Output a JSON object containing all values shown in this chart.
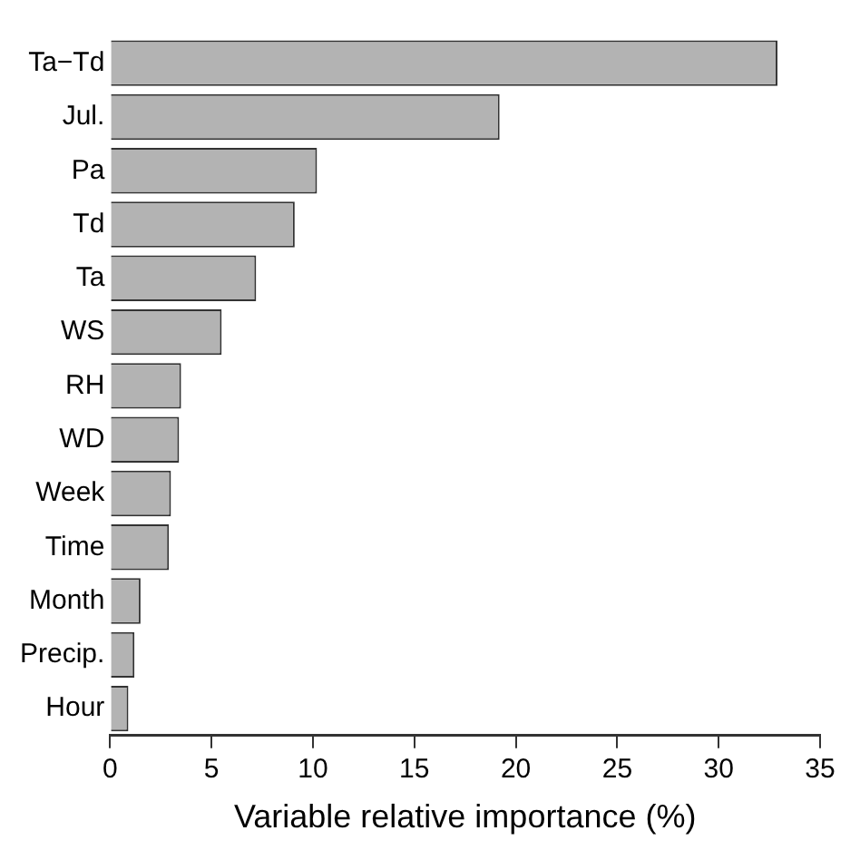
{
  "chart_data": {
    "type": "bar",
    "orientation": "horizontal",
    "xlabel": "Variable relative importance (%)",
    "categories": [
      "Ta−Td",
      "Jul.",
      "Pa",
      "Td",
      "Ta",
      "WS",
      "RH",
      "WD",
      "Week",
      "Time",
      "Month",
      "Precip.",
      "Hour"
    ],
    "values": [
      32.9,
      19.2,
      10.2,
      9.1,
      7.2,
      5.5,
      3.5,
      3.4,
      3.0,
      2.9,
      1.5,
      1.2,
      0.9
    ],
    "color": "#b3b3b3",
    "xlim": [
      0,
      35
    ],
    "xticks": [
      0,
      5,
      10,
      15,
      20,
      25,
      30,
      35
    ],
    "grid": false,
    "legend": false
  }
}
